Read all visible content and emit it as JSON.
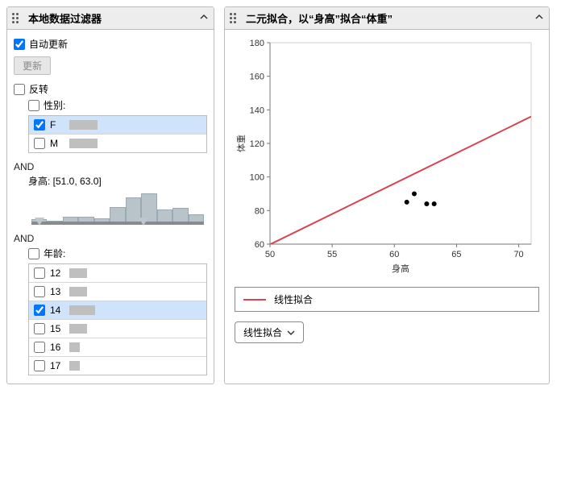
{
  "left_panel": {
    "title": "本地数据过滤器",
    "auto_update": {
      "label": "自动更新",
      "checked": true
    },
    "update_btn": "更新",
    "invert": {
      "label": "反转",
      "checked": false
    },
    "and_label": "AND",
    "gender": {
      "label": "性别:",
      "header_checked": false,
      "rows": [
        {
          "label": "F",
          "checked": true,
          "bar_pct": 22,
          "selected": true
        },
        {
          "label": "M",
          "checked": false,
          "bar_pct": 22,
          "selected": false
        }
      ]
    },
    "height": {
      "label": "身高: [51.0, 63.0]",
      "range_min_pct": 2,
      "range_max_pct": 62,
      "bars_pct": [
        5,
        0,
        14,
        14,
        8,
        50,
        84,
        100,
        40,
        48,
        24
      ]
    },
    "age": {
      "label": "年龄:",
      "header_checked": false,
      "rows": [
        {
          "label": "12",
          "checked": false,
          "bar_pct": 14,
          "selected": false
        },
        {
          "label": "13",
          "checked": false,
          "bar_pct": 14,
          "selected": false
        },
        {
          "label": "14",
          "checked": true,
          "bar_pct": 20,
          "selected": true
        },
        {
          "label": "15",
          "checked": false,
          "bar_pct": 14,
          "selected": false
        },
        {
          "label": "16",
          "checked": false,
          "bar_pct": 8,
          "selected": false
        },
        {
          "label": "17",
          "checked": false,
          "bar_pct": 8,
          "selected": false
        }
      ]
    }
  },
  "right_panel": {
    "title": "二元拟合，以“身高”拟合“体重”",
    "chart": {
      "type": "scatter+line",
      "xlabel": "身高",
      "ylabel": "体重",
      "xlim": [
        50,
        71
      ],
      "ylim": [
        60,
        180
      ],
      "xticks": [
        50,
        55,
        60,
        65,
        70
      ],
      "yticks": [
        60,
        80,
        100,
        120,
        140,
        160,
        180
      ],
      "background": "#ffffff",
      "axis_color": "#777777",
      "frame_color": "#cfcfcf",
      "line": {
        "color": "#d94352",
        "width": 2,
        "x0": 49.5,
        "y0": 58,
        "x1": 71,
        "y1": 136
      },
      "points": {
        "color": "#000000",
        "r": 3,
        "data": [
          {
            "x": 61.0,
            "y": 85
          },
          {
            "x": 61.6,
            "y": 90
          },
          {
            "x": 62.6,
            "y": 84
          },
          {
            "x": 63.2,
            "y": 84
          }
        ]
      },
      "tick_fontsize": 11,
      "label_fontsize": 12
    },
    "legend": {
      "label": "线性拟合",
      "color": "#d94352"
    },
    "dropdown": {
      "label": "线性拟合"
    }
  }
}
